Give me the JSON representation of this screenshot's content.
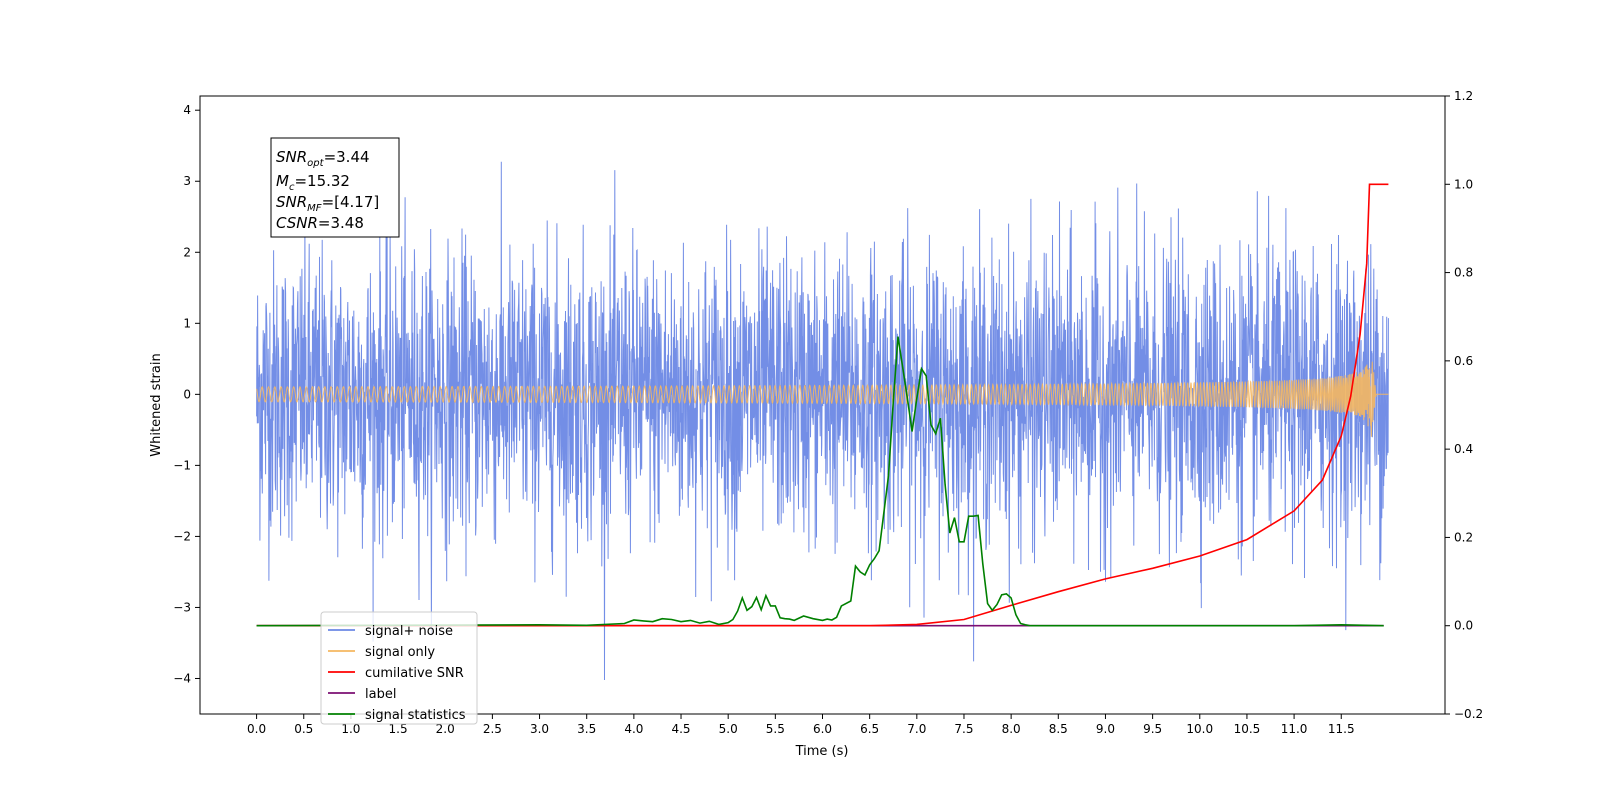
{
  "chart_data": {
    "type": "line",
    "xlabel": "Time (s)",
    "ylabel_left": "Whitened strain",
    "ylabel_right": "",
    "xlim": [
      -0.6,
      12.6
    ],
    "ylim_left": [
      -4.5,
      4.2
    ],
    "ylim_right": [
      -0.2,
      1.2
    ],
    "x_ticks": [
      "0.0",
      "0.5",
      "1.0",
      "1.5",
      "2.0",
      "2.5",
      "3.0",
      "3.5",
      "4.0",
      "4.5",
      "5.0",
      "5.5",
      "6.0",
      "6.5",
      "7.0",
      "7.5",
      "8.0",
      "8.5",
      "9.0",
      "9.5",
      "10.0",
      "10.5",
      "11.0",
      "11.5"
    ],
    "y_ticks_left": [
      "4",
      "3",
      "2",
      "1",
      "0",
      "−1",
      "−2",
      "−3",
      "−4"
    ],
    "y_ticks_right": [
      "1.2",
      "1.0",
      "0.8",
      "0.6",
      "0.4",
      "0.2",
      "0.0",
      "−0.2"
    ],
    "legend_position": "lower left",
    "grid": false,
    "annotation": {
      "snr_opt": {
        "base": "SNR",
        "sub": "opt",
        "value": "=3.44"
      },
      "mc": {
        "base": "M",
        "sub": "c",
        "value": "=15.32"
      },
      "snr_mf": {
        "base": "SNR",
        "sub": "MF",
        "value": "=[4.17]"
      },
      "csnr": {
        "base": "CSNR",
        "value": "=3.48"
      }
    },
    "series": [
      {
        "name": "signal+ noise",
        "axis": "left",
        "color": "#6b88e5",
        "description_values": "noise-dominated whitened strain, std approx 1.0, x from 0.0 to 12.0",
        "t_range": [
          0.0,
          12.0
        ],
        "std": 1.0
      },
      {
        "name": "signal only",
        "axis": "left",
        "color": "#f5b760",
        "t_range": [
          0.0,
          12.0
        ],
        "chirp_peak_time": 11.82,
        "peak_amplitude": [
          0.6,
          -0.65
        ]
      },
      {
        "name": "cumilative SNR",
        "axis": "right",
        "color": "#ff0000",
        "x": [
          0.0,
          6.5,
          7.0,
          7.5,
          8.0,
          8.5,
          9.0,
          9.5,
          10.0,
          10.5,
          11.0,
          11.3,
          11.5,
          11.6,
          11.7,
          11.77,
          11.8,
          12.0
        ],
        "y": [
          0.0,
          0.0,
          0.003,
          0.014,
          0.046,
          0.077,
          0.106,
          0.13,
          0.158,
          0.195,
          0.26,
          0.33,
          0.43,
          0.52,
          0.66,
          0.82,
          1.0,
          1.0
        ]
      },
      {
        "name": "label",
        "axis": "right",
        "color": "#7b0f73",
        "x": [
          0.0,
          11.95
        ],
        "y": [
          0.0,
          0.0
        ]
      },
      {
        "name": "signal statistics",
        "axis": "right",
        "color": "#008000",
        "x": [
          0.0,
          3.0,
          3.5,
          3.9,
          4.0,
          4.1,
          4.2,
          4.3,
          4.4,
          4.5,
          4.6,
          4.7,
          4.8,
          4.9,
          5.0,
          5.05,
          5.1,
          5.15,
          5.2,
          5.25,
          5.3,
          5.35,
          5.4,
          5.45,
          5.5,
          5.55,
          5.6,
          5.65,
          5.7,
          5.8,
          5.9,
          6.0,
          6.05,
          6.1,
          6.15,
          6.2,
          6.3,
          6.35,
          6.4,
          6.45,
          6.5,
          6.55,
          6.6,
          6.7,
          6.75,
          6.8,
          6.9,
          6.95,
          7.0,
          7.05,
          7.1,
          7.15,
          7.2,
          7.25,
          7.3,
          7.35,
          7.4,
          7.45,
          7.5,
          7.55,
          7.6,
          7.65,
          7.7,
          7.75,
          7.8,
          7.85,
          7.9,
          7.95,
          8.0,
          8.05,
          8.1,
          8.15,
          8.2,
          8.25,
          8.3,
          8.35,
          8.4,
          8.45,
          8.5,
          8.55,
          8.6,
          8.65,
          8.7,
          8.75,
          8.8,
          8.9,
          9.0,
          9.5,
          10.0,
          10.5,
          11.0,
          11.5,
          11.95
        ],
        "y": [
          0.0,
          0.002,
          0.001,
          0.005,
          0.013,
          0.011,
          0.009,
          0.016,
          0.014,
          0.009,
          0.012,
          0.006,
          0.01,
          0.003,
          0.007,
          0.014,
          0.033,
          0.063,
          0.035,
          0.043,
          0.064,
          0.036,
          0.068,
          0.045,
          0.045,
          0.018,
          0.016,
          0.015,
          0.012,
          0.022,
          0.016,
          0.012,
          0.015,
          0.013,
          0.019,
          0.045,
          0.056,
          0.135,
          0.122,
          0.115,
          0.138,
          0.152,
          0.17,
          0.34,
          0.505,
          0.655,
          0.515,
          0.44,
          0.515,
          0.582,
          0.566,
          0.455,
          0.435,
          0.47,
          0.32,
          0.21,
          0.245,
          0.19,
          0.19,
          0.248,
          0.248,
          0.25,
          0.14,
          0.05,
          0.035,
          0.048,
          0.07,
          0.072,
          0.063,
          0.025,
          0.005,
          0.002,
          0.0,
          0.0,
          0.0,
          0.0,
          0.0,
          0.0,
          0.0,
          0.0,
          0.0,
          0.0,
          0.0,
          0.0,
          0.0,
          0.0,
          0.0,
          0.0,
          0.0,
          0.0,
          0.0,
          0.002,
          0.0
        ]
      }
    ]
  }
}
